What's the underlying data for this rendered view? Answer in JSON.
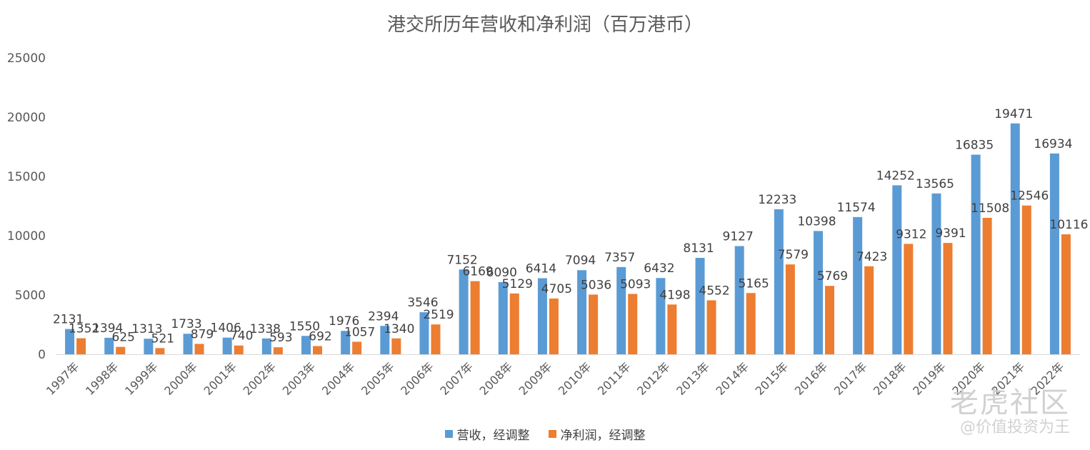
{
  "chart_data": {
    "type": "bar",
    "title": "港交所历年营收和净利润（百万港币）",
    "categories": [
      "1997年",
      "1998年",
      "1999年",
      "2000年",
      "2001年",
      "2002年",
      "2003年",
      "2004年",
      "2005年",
      "2006年",
      "2007年",
      "2008年",
      "2009年",
      "2010年",
      "2011年",
      "2012年",
      "2013年",
      "2014年",
      "2015年",
      "2016年",
      "2017年",
      "2018年",
      "2019年",
      "2020年",
      "2021年",
      "2022年"
    ],
    "series": [
      {
        "name": "营收，经调整",
        "color": "#5b9bd5",
        "values": [
          2131,
          1394,
          1313,
          1733,
          1406,
          1338,
          1550,
          1976,
          2394,
          3546,
          7152,
          6090,
          6414,
          7094,
          7357,
          6432,
          8131,
          9127,
          12233,
          10398,
          11574,
          14252,
          13565,
          16835,
          19471,
          16934
        ]
      },
      {
        "name": "净利润，经调整",
        "color": "#ed7d31",
        "values": [
          1352,
          625,
          521,
          879,
          740,
          593,
          692,
          1057,
          1340,
          2519,
          6169,
          5129,
          4705,
          5036,
          5093,
          4198,
          4552,
          5165,
          7579,
          5769,
          7423,
          9312,
          9391,
          11508,
          12546,
          10116
        ]
      }
    ],
    "ylim": [
      0,
      25000
    ],
    "yticks": [
      0,
      5000,
      10000,
      15000,
      20000,
      25000
    ],
    "grid": false,
    "legend_position": "bottom"
  },
  "watermark": {
    "brand": "老虎社区",
    "user": "@价值投资为王"
  }
}
